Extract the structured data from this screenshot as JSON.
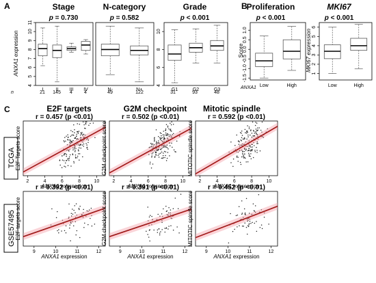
{
  "panel_labels": {
    "A": "A",
    "B": "B",
    "C": "C"
  },
  "panel_a": {
    "ylabel_gene": "ANXA1",
    "ylabel_rest": " expression",
    "n_label": "n",
    "plots": [
      {
        "title": "Stage",
        "p_prefix": "p",
        "p_text": " = 0.730",
        "p_bold": false,
        "categories": [
          "I",
          "II",
          "III",
          "IV"
        ],
        "n": [
          "21",
          "145",
          "4",
          "4"
        ]
      },
      {
        "title": "N-category",
        "p_prefix": "p",
        "p_text": " = 0.582",
        "p_bold": false,
        "categories": [
          "N-",
          "N+"
        ],
        "n": [
          "49",
          "122"
        ]
      },
      {
        "title": "Grade",
        "p_prefix": "p",
        "p_text": " < 0.001",
        "p_bold": true,
        "categories": [
          "G1",
          "G2",
          "G3"
        ],
        "n": [
          "31",
          "93",
          "48"
        ]
      }
    ]
  },
  "panel_b": {
    "xgroup_label": "ANXA1",
    "plots": [
      {
        "title": "Proliferation",
        "title_italic": false,
        "p_prefix": "p",
        "p_text": " < 0.001",
        "ylabel": "Score",
        "categories": [
          "Low",
          "High"
        ]
      },
      {
        "title": "MKI67",
        "title_italic": true,
        "p_prefix": "p",
        "p_text": " < 0.001",
        "ylabel": "MKI67 expression",
        "categories": [
          "Low",
          "High"
        ]
      }
    ]
  },
  "panel_c": {
    "xlabel_gene": "ANXA1",
    "xlabel_rest": " expression",
    "columns": [
      "E2F targets",
      "G2M checkpoint",
      "Mitotic spindle"
    ],
    "datasets": [
      "TCGA",
      "GSE57495"
    ],
    "stats": [
      [
        "r = 0.457 (p <0.01)",
        "r = 0.502 (p <0.01)",
        "r = 0.592 (p <0.01)"
      ],
      [
        "r = 0.392 (p <0.01)",
        "r = 0.391 (p <0.01)",
        "r = 0.452 (p <0.01)"
      ]
    ],
    "ylabels": [
      [
        "E2F Targets score",
        "G2M checkpoint score",
        "MITOTIC spindle score"
      ],
      [
        "E2F targets score",
        "G2M checkpoint score",
        "MITOTIC spindle score"
      ]
    ]
  },
  "chart_data": [
    {
      "type": "box",
      "title": "Stage",
      "ylabel": "ANXA1 expression",
      "ylim": [
        4,
        11
      ],
      "yticks": [
        "4",
        "5",
        "6",
        "7",
        "8",
        "9",
        "10",
        "11"
      ],
      "categories": [
        "I",
        "II",
        "III",
        "IV"
      ],
      "boxes": [
        {
          "min": 6.2,
          "q1": 7.3,
          "median": 8.1,
          "q3": 8.6,
          "max": 10.4
        },
        {
          "min": 4.4,
          "q1": 7.1,
          "median": 7.9,
          "q3": 8.5,
          "max": 10.6
        },
        {
          "min": 7.7,
          "q1": 7.9,
          "median": 8.1,
          "q3": 8.3,
          "max": 8.7
        },
        {
          "min": 7.5,
          "q1": 7.9,
          "median": 8.5,
          "q3": 8.9,
          "max": 9.1
        }
      ]
    },
    {
      "type": "box",
      "title": "N-category",
      "ylim": [
        4,
        11
      ],
      "categories": [
        "N-",
        "N+"
      ],
      "boxes": [
        {
          "min": 5.2,
          "q1": 7.3,
          "median": 8.0,
          "q3": 8.6,
          "max": 10.6
        },
        {
          "min": 4.4,
          "q1": 7.4,
          "median": 7.9,
          "q3": 8.4,
          "max": 10.4
        }
      ]
    },
    {
      "type": "box",
      "title": "Grade",
      "ylim": [
        4,
        11
      ],
      "categories": [
        "G1",
        "G2",
        "G3"
      ],
      "boxes": [
        {
          "min": 4.3,
          "q1": 6.8,
          "median": 7.5,
          "q3": 8.5,
          "max": 10.2
        },
        {
          "min": 6.5,
          "q1": 7.7,
          "median": 8.2,
          "q3": 8.7,
          "max": 10.3
        },
        {
          "min": 6.5,
          "q1": 7.9,
          "median": 8.4,
          "q3": 9.0,
          "max": 10.7
        }
      ]
    },
    {
      "type": "box",
      "title": "Proliferation",
      "ylabel": "Score",
      "ylim": [
        -1.6,
        1.4
      ],
      "yticks": [
        "-1.5",
        "-1.0",
        "-0.5",
        "0.0",
        "0.5",
        "1.0"
      ],
      "categories": [
        "Low",
        "High"
      ],
      "boxes": [
        {
          "min": -1.5,
          "q1": -0.9,
          "median": -0.6,
          "q3": -0.2,
          "max": 0.7
        },
        {
          "min": -1.1,
          "q1": -0.5,
          "median": -0.1,
          "q3": 0.5,
          "max": 1.2
        }
      ]
    },
    {
      "type": "box",
      "title": "MKI67",
      "ylabel": "MKI67 expression",
      "ylim": [
        0.3,
        6.5
      ],
      "yticks": [
        "1",
        "2",
        "3",
        "4",
        "5",
        "6"
      ],
      "categories": [
        "Low",
        "High"
      ],
      "boxes": [
        {
          "min": 1.0,
          "q1": 2.6,
          "median": 3.4,
          "q3": 4.1,
          "max": 6.0
        },
        {
          "min": 1.5,
          "q1": 3.5,
          "median": 4.0,
          "q3": 4.8,
          "max": 6.3
        }
      ]
    },
    {
      "type": "scatter",
      "dataset": "TCGA",
      "title": "E2F targets",
      "r": 0.457,
      "xlabel": "ANXA1 expression",
      "ylabel": "E2F Targets score",
      "xlim": [
        1.5,
        11
      ],
      "xticks": [
        2,
        4,
        6,
        8,
        10
      ],
      "ylim": [
        -0.5,
        0.65
      ],
      "fit": {
        "x": [
          1.5,
          11
        ],
        "y": [
          -0.42,
          0.52
        ]
      }
    },
    {
      "type": "scatter",
      "dataset": "TCGA",
      "title": "G2M checkpoint",
      "r": 0.502,
      "xlabel": "ANXA1 expression",
      "ylabel": "G2M checkpoint score",
      "xlim": [
        1.5,
        11
      ],
      "xticks": [
        2,
        4,
        6,
        8,
        10
      ],
      "ylim": [
        -0.5,
        0.65
      ],
      "fit": {
        "x": [
          1.5,
          11
        ],
        "y": [
          -0.44,
          0.5
        ]
      }
    },
    {
      "type": "scatter",
      "dataset": "TCGA",
      "title": "Mitotic spindle",
      "r": 0.592,
      "xlabel": "ANXA1 expression",
      "ylabel": "MITOTIC spindle score",
      "xlim": [
        1.5,
        11
      ],
      "xticks": [
        2,
        4,
        6,
        8,
        10
      ],
      "ylim": [
        -0.5,
        0.65
      ],
      "fit": {
        "x": [
          1.5,
          11
        ],
        "y": [
          -0.46,
          0.54
        ]
      }
    },
    {
      "type": "scatter",
      "dataset": "GSE57495",
      "title": "E2F targets",
      "r": 0.392,
      "xlabel": "ANXA1 expression",
      "ylabel": "E2F targets score",
      "xlim": [
        8.5,
        12.3
      ],
      "xticks": [
        9,
        10,
        11,
        12
      ],
      "ylim": [
        -0.5,
        0.65
      ],
      "fit": {
        "x": [
          8.5,
          12.3
        ],
        "y": [
          -0.3,
          0.3
        ]
      }
    },
    {
      "type": "scatter",
      "dataset": "GSE57495",
      "title": "G2M checkpoint",
      "r": 0.391,
      "xlabel": "ANXA1 expression",
      "ylabel": "G2M checkpoint score",
      "xlim": [
        8.5,
        12.3
      ],
      "xticks": [
        9,
        10,
        11,
        12
      ],
      "ylim": [
        -0.5,
        0.65
      ],
      "fit": {
        "x": [
          8.5,
          12.3
        ],
        "y": [
          -0.3,
          0.28
        ]
      }
    },
    {
      "type": "scatter",
      "dataset": "GSE57495",
      "title": "Mitotic spindle",
      "r": 0.452,
      "xlabel": "ANXA1 expression",
      "ylabel": "MITOTIC spindle score",
      "xlim": [
        8.5,
        12.3
      ],
      "xticks": [
        9,
        10,
        11,
        12
      ],
      "ylim": [
        -0.5,
        0.65
      ],
      "fit": {
        "x": [
          8.5,
          12.3
        ],
        "y": [
          -0.32,
          0.34
        ]
      }
    }
  ]
}
